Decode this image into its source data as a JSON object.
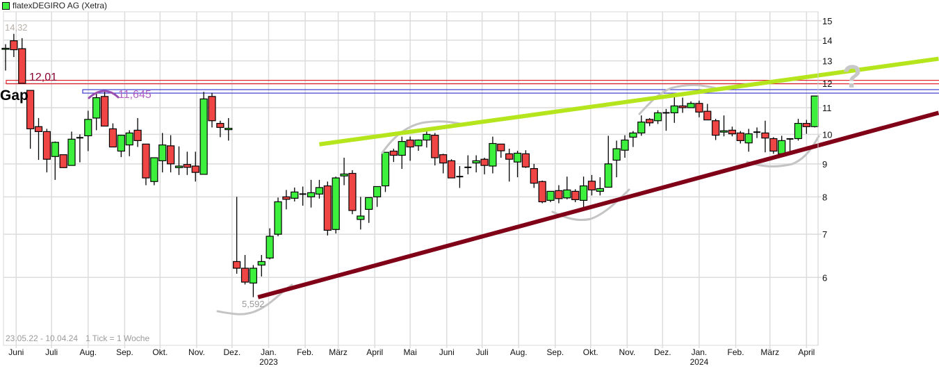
{
  "legend": {
    "label": "flatexDEGIRO AG (Xetra)",
    "color": "#3ef03e"
  },
  "footer": {
    "period": "23.05.22 - 10.04.24",
    "tick": "1 Tick = 1 Woche"
  },
  "chart_data": {
    "type": "candlestick",
    "title": "flatexDEGIRO AG (Xetra)",
    "start_date": "2022-05-23",
    "end_date": "2024-04-10",
    "interval": "week",
    "y_scale": "log",
    "ylim": [
      5.2,
      15.5
    ],
    "grid": true,
    "y_ticks": [
      15,
      14,
      13,
      12,
      11,
      10,
      9,
      8,
      7,
      6
    ],
    "x_ticks": [
      {
        "label": "Juni",
        "date": "2022-06-01"
      },
      {
        "label": "Juli",
        "date": "2022-07-01"
      },
      {
        "label": "Aug.",
        "date": "2022-08-01"
      },
      {
        "label": "Sep.",
        "date": "2022-09-01"
      },
      {
        "label": "Okt.",
        "date": "2022-10-01"
      },
      {
        "label": "Nov.",
        "date": "2022-11-01"
      },
      {
        "label": "Dez.",
        "date": "2022-12-01"
      },
      {
        "label": "Jan.",
        "year": "2023",
        "date": "2023-01-01"
      },
      {
        "label": "Feb.",
        "date": "2023-02-01"
      },
      {
        "label": "März",
        "date": "2023-03-01"
      },
      {
        "label": "April",
        "date": "2023-04-01"
      },
      {
        "label": "Mai",
        "date": "2023-05-01"
      },
      {
        "label": "Juni",
        "date": "2023-06-01"
      },
      {
        "label": "Juli",
        "date": "2023-07-01"
      },
      {
        "label": "Aug.",
        "date": "2023-08-01"
      },
      {
        "label": "Sep.",
        "date": "2023-09-01"
      },
      {
        "label": "Okt.",
        "date": "2023-10-01"
      },
      {
        "label": "Nov.",
        "date": "2023-11-01"
      },
      {
        "label": "Dez.",
        "date": "2023-12-01"
      },
      {
        "label": "Jan.",
        "year": "2024",
        "date": "2024-01-01"
      },
      {
        "label": "Feb.",
        "date": "2024-02-01"
      },
      {
        "label": "März",
        "date": "2024-03-01"
      },
      {
        "label": "April",
        "date": "2024-04-01"
      }
    ],
    "colors": {
      "up": "#3ef03e",
      "down": "#f04545"
    },
    "ohlc": [
      [
        13.55,
        13.8,
        12.56,
        13.6
      ],
      [
        13.97,
        14.32,
        13.18,
        13.53
      ],
      [
        13.58,
        14.1,
        12.0,
        12.0
      ],
      [
        11.7,
        11.7,
        9.5,
        10.2
      ],
      [
        10.28,
        10.6,
        9.13,
        10.1
      ],
      [
        10.1,
        10.2,
        8.73,
        9.15
      ],
      [
        9.24,
        9.75,
        8.5,
        9.72
      ],
      [
        9.3,
        9.3,
        8.87,
        8.88
      ],
      [
        8.95,
        10.1,
        8.95,
        9.83
      ],
      [
        9.88,
        10.0,
        9.05,
        9.88
      ],
      [
        9.95,
        10.88,
        9.42,
        10.55
      ],
      [
        10.6,
        11.58,
        10.15,
        11.4
      ],
      [
        11.45,
        11.7,
        10.3,
        10.3
      ],
      [
        10.2,
        10.4,
        9.56,
        9.56
      ],
      [
        9.42,
        9.97,
        9.22,
        9.97
      ],
      [
        9.63,
        10.15,
        9.25,
        10.05
      ],
      [
        10.15,
        10.6,
        9.56,
        9.78
      ],
      [
        9.66,
        9.66,
        8.34,
        8.56
      ],
      [
        8.45,
        9.2,
        8.34,
        9.2
      ],
      [
        9.1,
        10.05,
        8.73,
        9.63
      ],
      [
        9.6,
        9.97,
        8.73,
        9.0
      ],
      [
        8.88,
        9.58,
        8.65,
        8.93
      ],
      [
        8.98,
        9.4,
        8.65,
        8.89
      ],
      [
        8.93,
        9.4,
        8.45,
        8.73
      ],
      [
        8.67,
        11.64,
        8.67,
        11.35
      ],
      [
        11.45,
        11.6,
        10.25,
        10.5
      ],
      [
        10.4,
        10.5,
        9.9,
        10.25
      ],
      [
        10.17,
        10.6,
        9.78,
        10.22
      ],
      [
        6.35,
        8.0,
        6.08,
        6.2
      ],
      [
        6.2,
        6.5,
        5.85,
        5.9
      ],
      [
        5.88,
        6.27,
        5.592,
        6.2
      ],
      [
        6.27,
        6.5,
        6.02,
        6.35
      ],
      [
        6.43,
        7.15,
        6.4,
        6.95
      ],
      [
        7.0,
        7.98,
        6.95,
        7.86
      ],
      [
        8.0,
        8.2,
        7.65,
        7.93
      ],
      [
        7.96,
        8.27,
        7.87,
        8.14
      ],
      [
        8.08,
        8.3,
        7.75,
        8.08
      ],
      [
        8.0,
        8.5,
        7.7,
        8.12
      ],
      [
        8.08,
        8.5,
        7.95,
        8.27
      ],
      [
        8.32,
        8.45,
        6.97,
        7.1
      ],
      [
        7.12,
        8.6,
        7.02,
        8.56
      ],
      [
        8.62,
        9.2,
        8.34,
        8.68
      ],
      [
        8.7,
        8.8,
        7.52,
        7.62
      ],
      [
        7.38,
        8.0,
        7.12,
        7.47
      ],
      [
        7.65,
        7.98,
        7.29,
        7.98
      ],
      [
        8.0,
        8.3,
        7.72,
        8.3
      ],
      [
        8.32,
        9.38,
        8.14,
        9.38
      ],
      [
        9.42,
        9.5,
        9.06,
        9.28
      ],
      [
        9.28,
        9.92,
        8.84,
        9.75
      ],
      [
        9.8,
        9.92,
        9.1,
        9.56
      ],
      [
        9.6,
        9.82,
        9.43,
        9.8
      ],
      [
        9.8,
        10.12,
        9.54,
        10.0
      ],
      [
        9.97,
        10.05,
        8.95,
        9.2
      ],
      [
        9.3,
        9.33,
        8.7,
        9.03
      ],
      [
        9.1,
        9.15,
        8.56,
        8.56
      ],
      [
        8.6,
        8.93,
        8.26,
        8.6
      ],
      [
        8.89,
        9.28,
        8.67,
        8.89
      ],
      [
        9.03,
        9.28,
        8.73,
        9.1
      ],
      [
        9.15,
        9.2,
        8.67,
        8.95
      ],
      [
        8.93,
        9.92,
        8.7,
        9.68
      ],
      [
        9.66,
        9.66,
        9.2,
        9.43
      ],
      [
        9.33,
        9.5,
        8.45,
        9.15
      ],
      [
        9.06,
        9.43,
        8.58,
        9.35
      ],
      [
        9.33,
        9.45,
        8.87,
        8.9
      ],
      [
        8.85,
        9.0,
        8.26,
        8.4
      ],
      [
        8.45,
        8.48,
        7.82,
        7.86
      ],
      [
        7.9,
        8.16,
        7.85,
        8.16
      ],
      [
        8.18,
        8.34,
        7.82,
        7.95
      ],
      [
        7.97,
        8.6,
        7.93,
        8.2
      ],
      [
        8.16,
        8.22,
        7.85,
        7.92
      ],
      [
        7.9,
        8.6,
        7.7,
        8.32
      ],
      [
        8.46,
        8.65,
        8.04,
        8.2
      ],
      [
        8.16,
        8.58,
        8.04,
        8.24
      ],
      [
        8.28,
        9.95,
        8.28,
        9.0
      ],
      [
        9.12,
        9.78,
        8.58,
        9.5
      ],
      [
        9.45,
        9.97,
        9.2,
        9.8
      ],
      [
        9.9,
        10.12,
        9.56,
        10.05
      ],
      [
        10.05,
        10.7,
        9.95,
        10.45
      ],
      [
        10.55,
        10.6,
        10.3,
        10.42
      ],
      [
        10.5,
        10.9,
        10.38,
        10.8
      ],
      [
        10.8,
        10.95,
        10.13,
        10.8
      ],
      [
        10.8,
        11.47,
        10.42,
        11.07
      ],
      [
        11.07,
        11.4,
        10.8,
        11.0
      ],
      [
        11.0,
        11.25,
        11.0,
        11.17
      ],
      [
        11.17,
        11.28,
        10.63,
        10.83
      ],
      [
        10.86,
        11.15,
        10.53,
        10.53
      ],
      [
        10.5,
        10.57,
        9.8,
        9.97
      ],
      [
        10.08,
        10.7,
        9.93,
        10.13
      ],
      [
        10.15,
        10.28,
        9.93,
        10.02
      ],
      [
        10.05,
        10.12,
        9.68,
        9.78
      ],
      [
        9.7,
        10.2,
        9.4,
        10.02
      ],
      [
        10.08,
        10.25,
        9.87,
        10.08
      ],
      [
        10.05,
        10.5,
        9.38,
        9.87
      ],
      [
        9.85,
        9.9,
        9.33,
        9.42
      ],
      [
        9.33,
        9.95,
        9.33,
        9.78
      ],
      [
        9.84,
        9.84,
        9.42,
        9.84
      ],
      [
        9.85,
        10.57,
        9.78,
        10.4
      ],
      [
        10.4,
        10.53,
        10.02,
        10.28
      ],
      [
        10.28,
        11.47,
        10.25,
        11.47
      ]
    ],
    "annotations": {
      "high_label": "14,32",
      "low_label": "5,592",
      "resistance": {
        "label": "12,01",
        "value": 12.01,
        "color": "#e0202a",
        "label_color": "#8b0030"
      },
      "support": {
        "label": "11,645",
        "value": 11.645,
        "color": "#3a3ad0",
        "label_color": "#b060c0"
      },
      "gap_label": "Gap",
      "question_mark": "?",
      "trendlines": [
        {
          "color": "#b5e61d",
          "from": [
            "2023-02-13",
            9.65
          ],
          "to": [
            "2024-07-22",
            13.1
          ]
        },
        {
          "color": "#800018",
          "from": [
            "2022-12-23",
            5.59
          ],
          "to": [
            "2024-07-22",
            10.8
          ]
        }
      ]
    }
  }
}
